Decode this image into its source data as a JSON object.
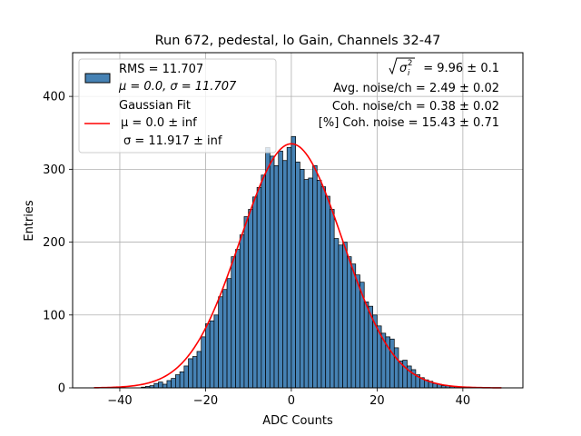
{
  "chart_data": {
    "type": "bar",
    "title": "Run 672, pedestal, lo Gain, Channels 32-47",
    "xlabel": "ADC Counts",
    "ylabel": "Entries",
    "xlim": [
      -51,
      54
    ],
    "ylim": [
      0,
      460
    ],
    "xticks": [
      -40,
      -20,
      0,
      20,
      40
    ],
    "yticks": [
      0,
      100,
      200,
      300,
      400
    ],
    "grid": true,
    "legend_placement": "top-left",
    "bin_width": 1,
    "bins": {
      "left_edges": [
        -35,
        -34,
        -33,
        -32,
        -31,
        -30,
        -29,
        -28,
        -27,
        -26,
        -25,
        -24,
        -23,
        -22,
        -21,
        -20,
        -19,
        -18,
        -17,
        -16,
        -15,
        -14,
        -13,
        -12,
        -11,
        -10,
        -9,
        -8,
        -7,
        -6,
        -5,
        -4,
        -3,
        -2,
        -1,
        0,
        1,
        2,
        3,
        4,
        5,
        6,
        7,
        8,
        9,
        10,
        11,
        12,
        13,
        14,
        15,
        16,
        17,
        18,
        19,
        20,
        21,
        22,
        23,
        24,
        25,
        26,
        27,
        28,
        29,
        30,
        31,
        32,
        33,
        34,
        35,
        36,
        37,
        38,
        39
      ],
      "counts": [
        1,
        2,
        3,
        6,
        8,
        5,
        10,
        13,
        18,
        22,
        30,
        40,
        43,
        50,
        70,
        88,
        92,
        100,
        125,
        135,
        150,
        180,
        190,
        210,
        235,
        245,
        262,
        275,
        292,
        330,
        318,
        305,
        325,
        312,
        330,
        345,
        310,
        300,
        286,
        288,
        305,
        285,
        276,
        263,
        245,
        205,
        196,
        200,
        180,
        170,
        155,
        145,
        118,
        112,
        100,
        85,
        75,
        70,
        67,
        55,
        37,
        38,
        30,
        25,
        18,
        14,
        11,
        9,
        6,
        5,
        3,
        3,
        2,
        2,
        1
      ]
    },
    "series": [
      {
        "name": "RMS = 11.707 / μ = 0.0, σ = 11.707",
        "type": "histogram",
        "color": "#4682b4",
        "edge_color": "#000000"
      },
      {
        "name": "Gaussian Fit",
        "type": "line",
        "color": "#ff0000",
        "amplitude": 335,
        "mu": 0.0,
        "sigma": 11.917,
        "x_range": [
          -46,
          49
        ]
      }
    ],
    "legend": {
      "hist_line1": "RMS = 11.707",
      "hist_line2": "μ = 0.0, σ = 11.707",
      "fit_line1": "Gaussian Fit",
      "fit_line2": "μ = 0.0 ± inf",
      "fit_line3": "σ = 11.917 ± inf"
    },
    "annotations": {
      "sigma_sum_value": "= 9.96 ± 0.1",
      "avg_noise": "Avg. noise/ch = 2.49 ± 0.02",
      "coh_noise": "Coh. noise/ch = 0.38 ± 0.02",
      "pct_coh_noise": "[%] Coh. noise = 15.43 ± 0.71"
    }
  }
}
